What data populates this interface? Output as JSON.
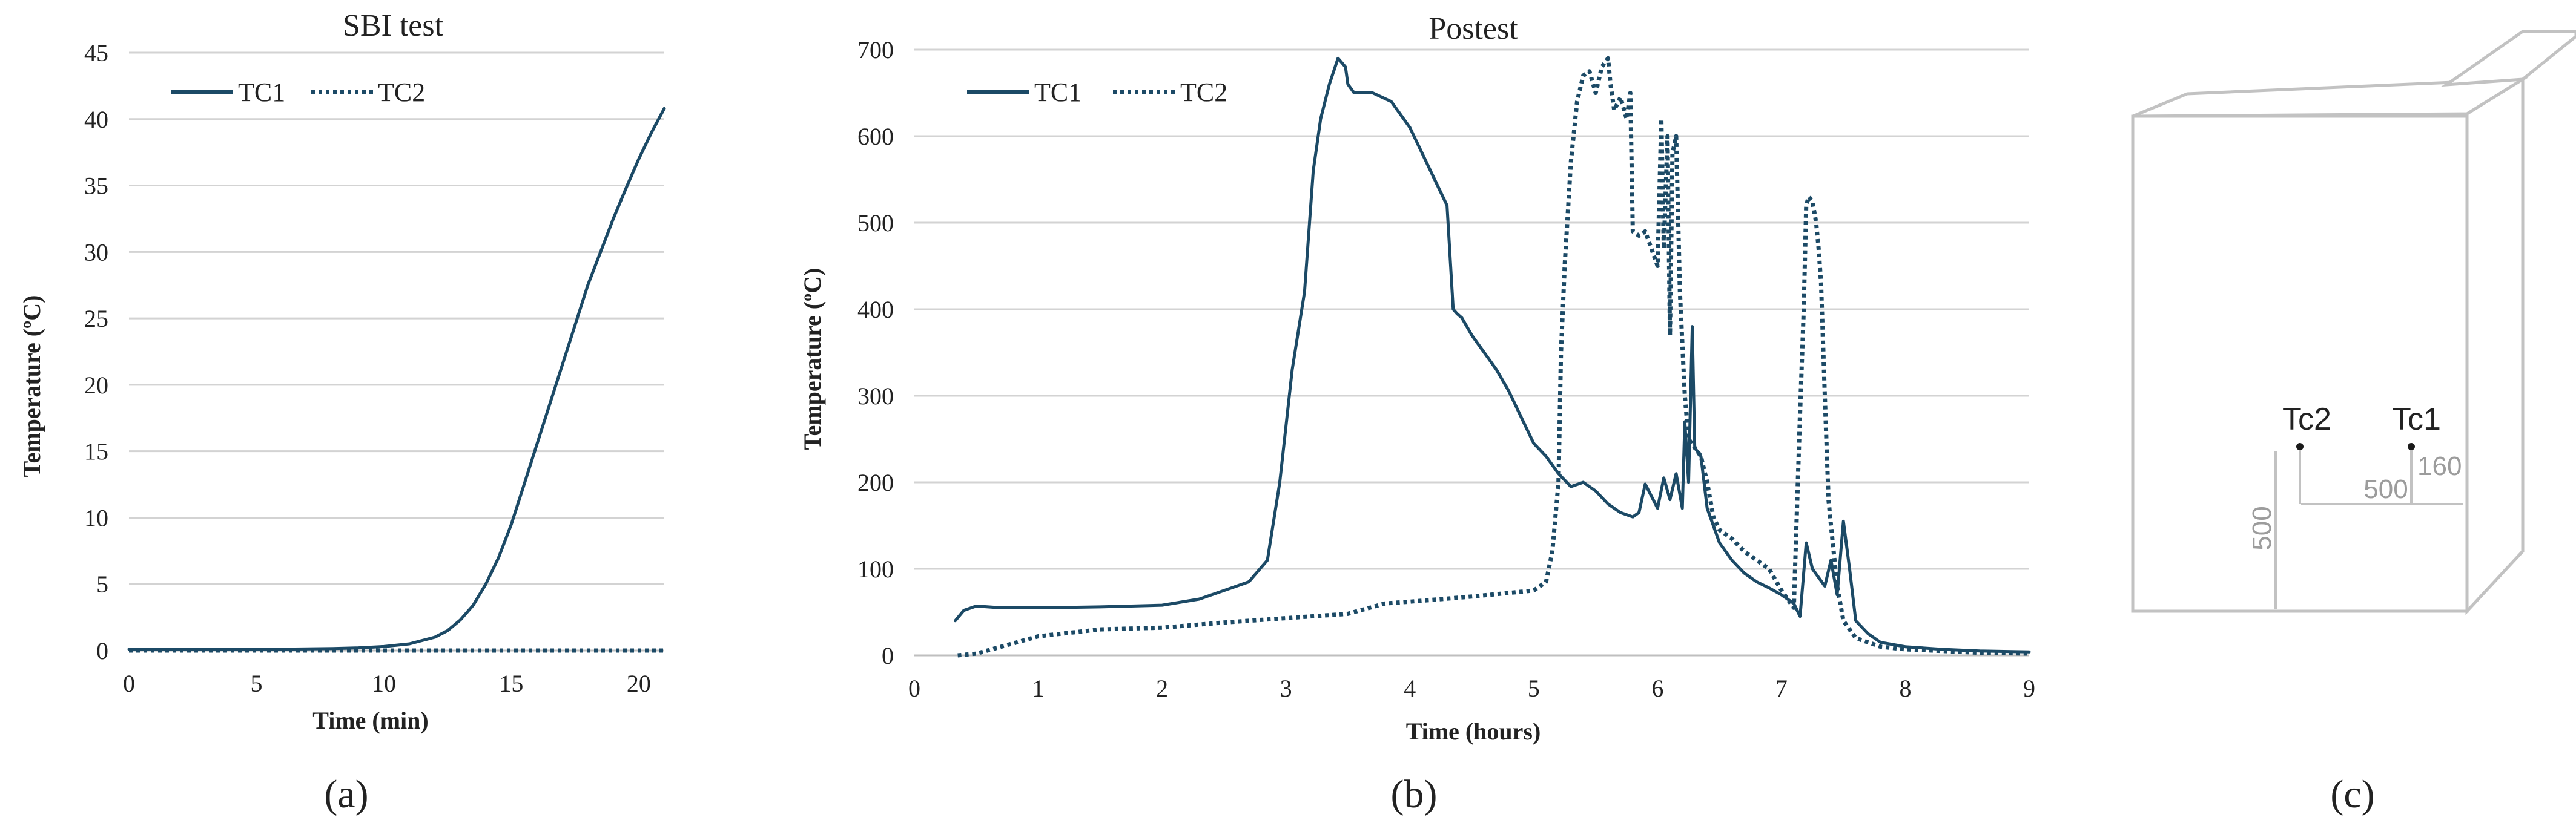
{
  "chart_data": [
    {
      "type": "line",
      "title": "SBI test",
      "xlabel": "Time (min)",
      "ylabel": "Temperature (ºC)",
      "xlim": [
        0,
        21
      ],
      "ylim": [
        0,
        45
      ],
      "xticks": [
        0,
        5,
        10,
        15,
        20
      ],
      "yticks": [
        0,
        5,
        10,
        15,
        20,
        25,
        30,
        35,
        40,
        45
      ],
      "grid": true,
      "legend": "top-left",
      "panel_label": "(a)",
      "series": [
        {
          "name": "TC1",
          "style": "solid",
          "color": "#1c4a66",
          "x": [
            0,
            2,
            4,
            6,
            8,
            9,
            10,
            11,
            12,
            12.5,
            13,
            13.5,
            14,
            14.5,
            15,
            15.5,
            16,
            16.5,
            17,
            17.5,
            18,
            18.5,
            19,
            19.5,
            20,
            20.5,
            21
          ],
          "y": [
            0.1,
            0.1,
            0.1,
            0.1,
            0.15,
            0.2,
            0.3,
            0.5,
            1.0,
            1.5,
            2.3,
            3.4,
            5.0,
            7.0,
            9.5,
            12.5,
            15.5,
            18.5,
            21.5,
            24.5,
            27.5,
            30.0,
            32.5,
            34.8,
            37.0,
            39.0,
            40.8
          ]
        },
        {
          "name": "TC2",
          "style": "dotted",
          "color": "#1c4a66",
          "x": [
            0,
            5,
            10,
            15,
            21
          ],
          "y": [
            0,
            0,
            0,
            0,
            0
          ]
        }
      ]
    },
    {
      "type": "line",
      "title": "Postest",
      "xlabel": "Time (hours)",
      "ylabel": "Temperature (ºC)",
      "xlim": [
        0,
        9
      ],
      "ylim": [
        0,
        700
      ],
      "xticks": [
        0,
        1,
        2,
        3,
        4,
        5,
        6,
        7,
        8,
        9
      ],
      "yticks": [
        0,
        100,
        200,
        300,
        400,
        500,
        600,
        700
      ],
      "grid": true,
      "legend": "top-left",
      "panel_label": "(b)",
      "series": [
        {
          "name": "TC1",
          "style": "solid",
          "color": "#1c4a66",
          "x": [
            0.33,
            0.4,
            0.5,
            0.7,
            1.0,
            1.5,
            2.0,
            2.3,
            2.5,
            2.7,
            2.85,
            2.95,
            3.05,
            3.15,
            3.22,
            3.28,
            3.35,
            3.42,
            3.48,
            3.5,
            3.55,
            3.7,
            3.85,
            4.0,
            4.1,
            4.2,
            4.3,
            4.35,
            4.38,
            4.42,
            4.5,
            4.6,
            4.7,
            4.8,
            4.9,
            5.0,
            5.1,
            5.2,
            5.3,
            5.4,
            5.5,
            5.6,
            5.7,
            5.8,
            5.85,
            5.9,
            6.0,
            6.05,
            6.1,
            6.15,
            6.2,
            6.22,
            6.25,
            6.28,
            6.3,
            6.35,
            6.4,
            6.5,
            6.6,
            6.7,
            6.8,
            6.9,
            7.0,
            7.1,
            7.15,
            7.2,
            7.25,
            7.3,
            7.35,
            7.4,
            7.45,
            7.5,
            7.55,
            7.6,
            7.7,
            7.8,
            8.0,
            8.3,
            8.6,
            9.0
          ],
          "y": [
            40,
            52,
            57,
            55,
            55,
            56,
            58,
            65,
            75,
            85,
            110,
            200,
            330,
            420,
            560,
            620,
            660,
            690,
            680,
            660,
            650,
            650,
            640,
            610,
            580,
            550,
            520,
            400,
            395,
            390,
            370,
            350,
            330,
            305,
            275,
            245,
            230,
            210,
            195,
            200,
            190,
            175,
            165,
            160,
            165,
            198,
            170,
            205,
            180,
            210,
            170,
            270,
            200,
            380,
            240,
            230,
            170,
            130,
            110,
            95,
            85,
            78,
            70,
            60,
            45,
            130,
            100,
            90,
            80,
            110,
            70,
            155,
            100,
            40,
            25,
            15,
            10,
            7,
            5,
            4
          ]
        },
        {
          "name": "TC2",
          "style": "dotted",
          "color": "#1c4a66",
          "x": [
            0.35,
            0.5,
            0.7,
            1.0,
            1.5,
            2.0,
            2.5,
            3.0,
            3.5,
            3.8,
            4.0,
            4.5,
            5.0,
            5.1,
            5.15,
            5.2,
            5.22,
            5.25,
            5.3,
            5.35,
            5.4,
            5.45,
            5.5,
            5.55,
            5.6,
            5.62,
            5.65,
            5.7,
            5.75,
            5.78,
            5.8,
            5.85,
            5.9,
            5.95,
            6.0,
            6.03,
            6.05,
            6.08,
            6.1,
            6.12,
            6.15,
            6.18,
            6.2,
            6.22,
            6.25,
            6.3,
            6.35,
            6.4,
            6.45,
            6.5,
            6.6,
            6.7,
            6.8,
            6.9,
            7.0,
            7.1,
            7.15,
            7.18,
            7.2,
            7.22,
            7.25,
            7.28,
            7.3,
            7.32,
            7.35,
            7.38,
            7.4,
            7.45,
            7.5,
            7.55,
            7.6,
            7.7,
            7.8,
            8.0,
            8.3,
            8.6,
            9.0
          ],
          "y": [
            0,
            2,
            10,
            22,
            30,
            32,
            38,
            43,
            48,
            60,
            62,
            68,
            75,
            85,
            120,
            200,
            350,
            450,
            570,
            640,
            670,
            675,
            650,
            680,
            690,
            660,
            630,
            645,
            620,
            650,
            490,
            485,
            490,
            470,
            450,
            620,
            470,
            600,
            370,
            580,
            600,
            420,
            360,
            300,
            250,
            240,
            230,
            200,
            160,
            145,
            135,
            120,
            110,
            100,
            75,
            55,
            280,
            400,
            520,
            530,
            525,
            500,
            470,
            430,
            300,
            180,
            150,
            80,
            40,
            30,
            20,
            15,
            10,
            7,
            5,
            3,
            2
          ]
        }
      ]
    }
  ],
  "diagram": {
    "panel_label": "(c)",
    "labels": {
      "tc2": "Tc2",
      "tc1": "Tc1",
      "dim_vertical": "500",
      "dim_horizontal": "500",
      "dim_offset": "160"
    }
  }
}
